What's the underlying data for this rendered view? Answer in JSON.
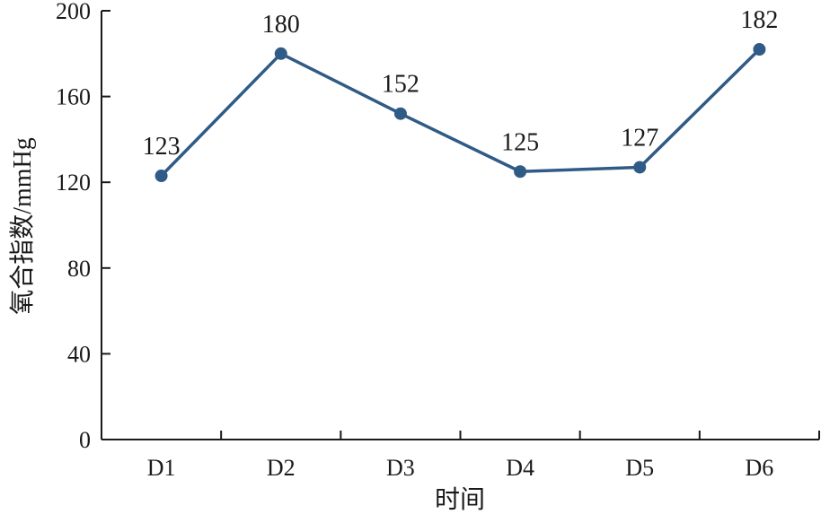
{
  "chart_data": {
    "type": "line",
    "categories": [
      "D1",
      "D2",
      "D3",
      "D4",
      "D5",
      "D6"
    ],
    "series": [
      {
        "values": [
          123,
          180,
          152,
          125,
          127,
          182
        ]
      }
    ],
    "data_labels": [
      "123",
      "180",
      "152",
      "125",
      "127",
      "182"
    ],
    "xlabel": "时间",
    "ylabel": "氧合指数/mmHg",
    "ylim": [
      0,
      200
    ],
    "yticks": [
      0,
      40,
      80,
      120,
      160,
      200
    ],
    "ytick_labels": [
      "0",
      "40",
      "80",
      "120",
      "160",
      "200"
    ],
    "grid": false,
    "line_color": "#2f5b86"
  }
}
